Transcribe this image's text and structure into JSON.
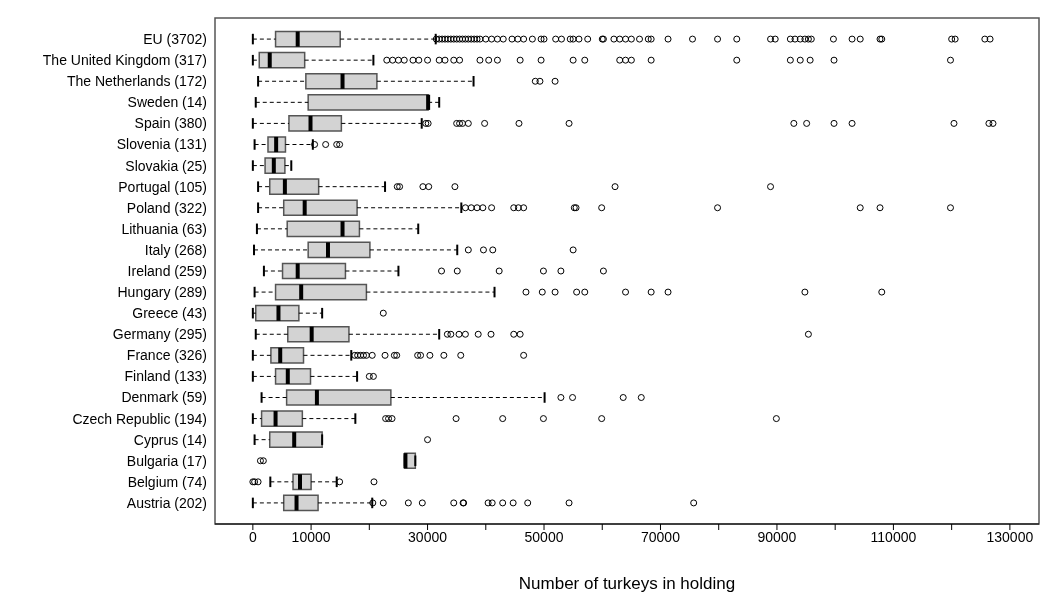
{
  "chart_data": {
    "type": "box",
    "orientation": "horizontal",
    "xlabel": "Number of turkeys in holding",
    "color": "#d3d3d3",
    "categories": [
      "EU (3702)",
      "The United Kingdom (317)",
      "The Netherlands (172)",
      "Sweden (14)",
      "Spain (380)",
      "Slovenia (131)",
      "Slovakia (25)",
      "Portugal (105)",
      "Poland (322)",
      "Lithuania (63)",
      "Italy (268)",
      "Ireland (259)",
      "Hungary (289)",
      "Greece (43)",
      "Germany (295)",
      "France (326)",
      "Finland (133)",
      "Denmark (59)",
      "Czech Republic (194)",
      "Cyprus (14)",
      "Bulgaria (17)",
      "Belgium (74)",
      "Austria (202)"
    ],
    "boxes": [
      {
        "low": 0,
        "q1": 3900,
        "median": 7700,
        "q3": 15000,
        "high": 31400,
        "outliers": [
          31500,
          32000,
          32500,
          33000,
          33500,
          34000,
          34500,
          35000,
          35500,
          36000,
          36500,
          37000,
          37500,
          38000,
          38500,
          39000,
          40000,
          41000,
          42000,
          43000,
          44500,
          45500,
          46500,
          48000,
          49500,
          50000,
          52000,
          53000,
          54500,
          55000,
          56000,
          57500,
          60000,
          60200,
          62000,
          63000,
          64000,
          65000,
          66400,
          67900,
          68400,
          71300,
          75500,
          79800,
          83100,
          88900,
          89700,
          92300,
          93100,
          94000,
          94800,
          95400,
          95900,
          99700,
          102900,
          104300,
          107700,
          108000,
          120000,
          120600,
          125700,
          126600
        ]
      },
      {
        "low": 0,
        "q1": 1100,
        "median": 2900,
        "q3": 8900,
        "high": 20700,
        "outliers": [
          23000,
          24000,
          25000,
          26000,
          27500,
          28500,
          30000,
          32000,
          33000,
          34500,
          35500,
          39000,
          40500,
          42000,
          45900,
          49500,
          55000,
          57000,
          63000,
          64000,
          65000,
          68400,
          83100,
          92300,
          94000,
          95700,
          99800,
          119800
        ]
      },
      {
        "low": 900,
        "q1": 9100,
        "median": 15400,
        "q3": 21300,
        "high": 37900,
        "outliers": [
          48500,
          49300,
          51900
        ]
      },
      {
        "low": 500,
        "q1": 9500,
        "median": 30100,
        "q3": 30100,
        "high": 32000
      },
      {
        "low": 0,
        "q1": 6200,
        "median": 9900,
        "q3": 15200,
        "high": 29000,
        "outliers": [
          29700,
          30100,
          35000,
          35500,
          36000,
          37000,
          39800,
          45700,
          54300,
          92900,
          95100,
          99800,
          102900,
          120400,
          126400,
          127100
        ]
      },
      {
        "low": 300,
        "q1": 2600,
        "median": 4000,
        "q3": 5600,
        "high": 10300,
        "outliers": [
          10600,
          12500,
          14400,
          14900
        ]
      },
      {
        "low": 0,
        "q1": 2100,
        "median": 3600,
        "q3": 5500,
        "high": 6600
      },
      {
        "low": 900,
        "q1": 2900,
        "median": 5500,
        "q3": 11300,
        "high": 22700,
        "outliers": [
          24800,
          25200,
          29200,
          30200,
          34700,
          62200,
          88900
        ]
      },
      {
        "low": 900,
        "q1": 5300,
        "median": 8900,
        "q3": 17900,
        "high": 35800,
        "outliers": [
          36500,
          37500,
          38500,
          39500,
          41000,
          44800,
          45600,
          46500,
          55200,
          55500,
          59900,
          79800,
          104300,
          107700,
          119800
        ]
      },
      {
        "low": 700,
        "q1": 5900,
        "median": 15400,
        "q3": 18300,
        "high": 28400
      },
      {
        "low": 200,
        "q1": 9500,
        "median": 12900,
        "q3": 20100,
        "high": 35100,
        "outliers": [
          37000,
          39600,
          41200,
          55000
        ]
      },
      {
        "low": 1900,
        "q1": 5100,
        "median": 7700,
        "q3": 15900,
        "high": 25000,
        "outliers": [
          32400,
          35100,
          42300,
          49900,
          52900,
          60200
        ]
      },
      {
        "low": 300,
        "q1": 3900,
        "median": 8300,
        "q3": 19500,
        "high": 41500,
        "outliers": [
          46900,
          49700,
          51900,
          55600,
          57000,
          64000,
          68400,
          71300,
          94800,
          108000
        ]
      },
      {
        "low": 0,
        "q1": 500,
        "median": 4400,
        "q3": 7900,
        "high": 11900,
        "outliers": [
          22400
        ]
      },
      {
        "low": 500,
        "q1": 6000,
        "median": 10100,
        "q3": 16500,
        "high": 32000,
        "outliers": [
          33400,
          34000,
          35400,
          36500,
          38700,
          40900,
          44800,
          45900,
          95400
        ]
      },
      {
        "low": 0,
        "q1": 3100,
        "median": 4700,
        "q3": 8700,
        "high": 16900,
        "outliers": [
          17500,
          18000,
          18500,
          19000,
          19500,
          20500,
          22700,
          24300,
          24700,
          28300,
          28800,
          30400,
          32800,
          35700,
          46500
        ]
      },
      {
        "low": 0,
        "q1": 3900,
        "median": 6000,
        "q3": 9900,
        "high": 17900,
        "outliers": [
          20000,
          20700
        ]
      },
      {
        "low": 1500,
        "q1": 5800,
        "median": 11000,
        "q3": 23700,
        "high": 50100,
        "outliers": [
          52900,
          54900,
          63600,
          66700
        ]
      },
      {
        "low": 0,
        "q1": 1500,
        "median": 3900,
        "q3": 8500,
        "high": 17600,
        "outliers": [
          22800,
          23300,
          23900,
          34900,
          42900,
          49900,
          59900,
          89900
        ]
      },
      {
        "low": 300,
        "q1": 2900,
        "median": 7100,
        "q3": 11900,
        "high": 11900,
        "outliers": [
          30000
        ]
      },
      {
        "low": 26100,
        "q1": 26100,
        "median": 26200,
        "q3": 27900,
        "high": 27900,
        "outliers": [
          1300,
          1800
        ]
      },
      {
        "low": 3000,
        "q1": 6900,
        "median": 8100,
        "q3": 10000,
        "high": 14400,
        "outliers": [
          0,
          300,
          900,
          14900,
          20800
        ]
      },
      {
        "low": 0,
        "q1": 5300,
        "median": 7500,
        "q3": 11200,
        "high": 20500,
        "outliers": [
          20600,
          22400,
          26700,
          29100,
          34500,
          36100,
          36200,
          40400,
          41100,
          42900,
          44700,
          47200,
          54300,
          75700
        ]
      }
    ],
    "xlim": [
      -6500,
      135000
    ],
    "xticks": [
      0,
      10000,
      {
        "value": 20000,
        "label": null
      },
      30000,
      {
        "value": 40000,
        "label": null
      },
      50000,
      {
        "value": 60000,
        "label": null
      },
      70000,
      {
        "value": 80000,
        "label": null
      },
      90000,
      {
        "value": 100000,
        "label": null
      },
      110000,
      {
        "value": 120000,
        "label": null
      },
      130000
    ]
  }
}
